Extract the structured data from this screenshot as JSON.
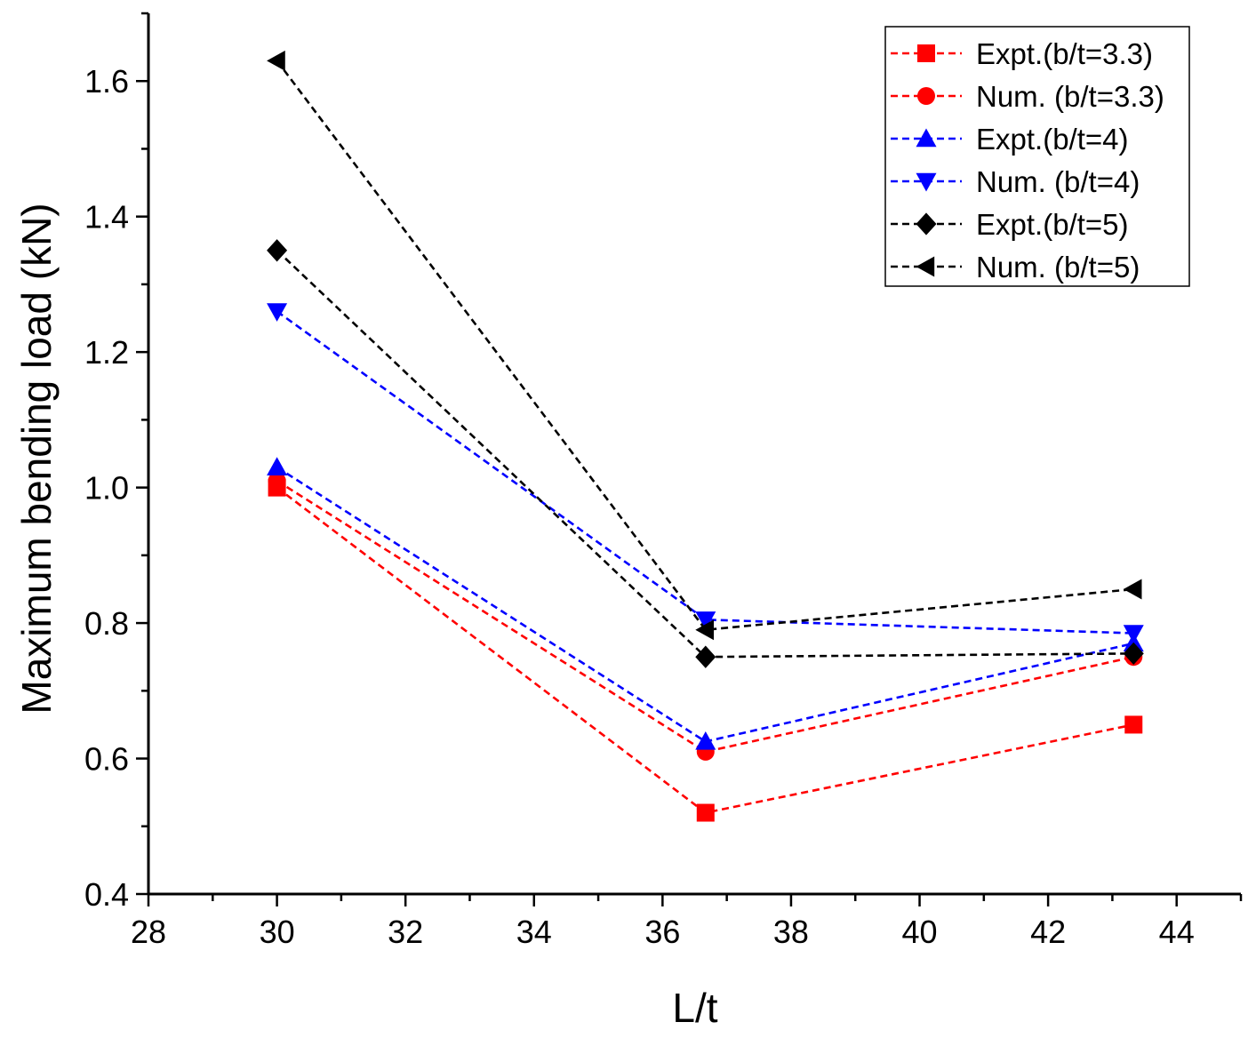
{
  "chart_data": {
    "type": "line",
    "title": "",
    "xlabel": "L/t",
    "ylabel": "Maximum bending load (kN)",
    "xlim": [
      28,
      45
    ],
    "ylim": [
      0.4,
      1.7
    ],
    "xticks": [
      "28",
      "30",
      "32",
      "34",
      "36",
      "38",
      "40",
      "42",
      "44"
    ],
    "yticks": [
      "0.4",
      "0.6",
      "0.8",
      "1.0",
      "1.2",
      "1.4",
      "1.6"
    ],
    "grid": false,
    "legend_position": "top-right",
    "series": [
      {
        "name": "Expt.(b/t=3.3)",
        "color": "#ff0000",
        "marker": "square",
        "x": [
          30,
          36.67,
          43.33
        ],
        "y": [
          1.0,
          0.52,
          0.65
        ]
      },
      {
        "name": "Num. (b/t=3.3)",
        "color": "#ff0000",
        "marker": "circle",
        "x": [
          30,
          36.67,
          43.33
        ],
        "y": [
          1.01,
          0.61,
          0.75
        ]
      },
      {
        "name": "Expt.(b/t=4)",
        "color": "#0000ff",
        "marker": "triangle-up",
        "x": [
          30,
          36.67,
          43.33
        ],
        "y": [
          1.03,
          0.625,
          0.77
        ]
      },
      {
        "name": "Num. (b/t=4)",
        "color": "#0000ff",
        "marker": "triangle-down",
        "x": [
          30,
          36.67,
          43.33
        ],
        "y": [
          1.26,
          0.805,
          0.785
        ]
      },
      {
        "name": "Expt.(b/t=5)",
        "color": "#000000",
        "marker": "diamond",
        "x": [
          30,
          36.67,
          43.33
        ],
        "y": [
          1.35,
          0.75,
          0.755
        ]
      },
      {
        "name": "Num. (b/t=5)",
        "color": "#000000",
        "marker": "triangle-left",
        "x": [
          30,
          36.67,
          43.33
        ],
        "y": [
          1.63,
          0.79,
          0.85
        ]
      }
    ]
  }
}
